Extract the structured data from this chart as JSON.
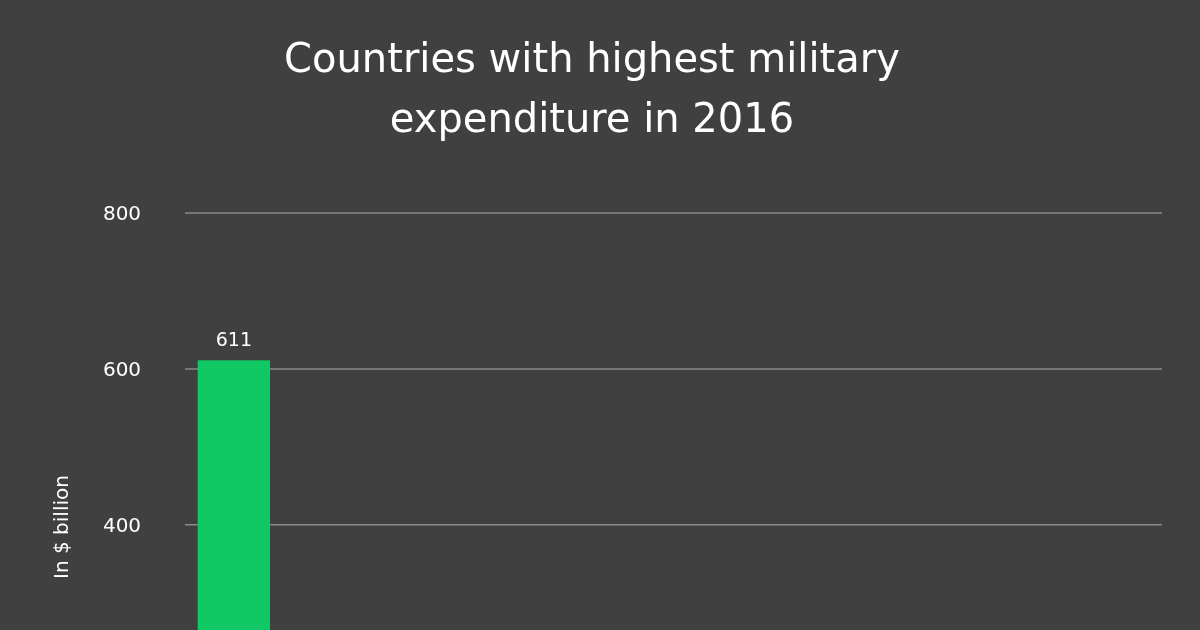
{
  "chart_data": {
    "type": "bar",
    "title": "Countries with highest military expenditure in 2016",
    "ylabel": "In $ billion",
    "categories": [
      null,
      null,
      null,
      null,
      null,
      null,
      null,
      null,
      null,
      null
    ],
    "values": [
      611,
      null,
      null,
      null,
      null,
      null,
      null,
      null,
      null,
      null
    ],
    "color": "#10c964",
    "ylim": [
      265,
      800
    ],
    "yticks": [
      400,
      600,
      800
    ],
    "grid": "y",
    "data_labels": true
  }
}
